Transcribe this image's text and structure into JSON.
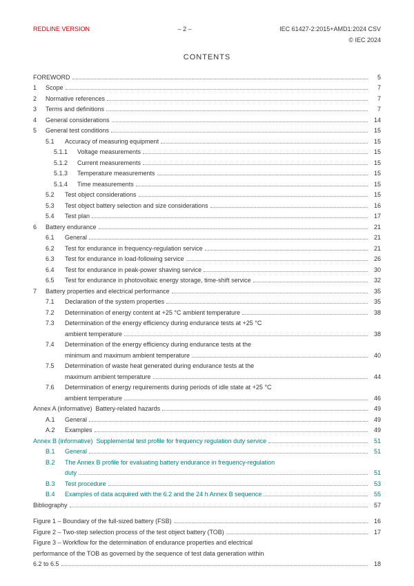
{
  "header": {
    "left": "REDLINE VERSION",
    "center": "– 2 –",
    "right_top": "IEC 61427-2:2015+AMD1:2024 CSV",
    "right_sub": "© IEC 2024"
  },
  "contents_title": "CONTENTS",
  "toc": [
    {
      "level": "foreword",
      "num": "",
      "title": "FOREWORD",
      "page": "5"
    },
    {
      "level": 1,
      "num": "1",
      "title": "Scope",
      "page": "7"
    },
    {
      "level": 1,
      "num": "2",
      "title": "Normative references",
      "page": "7"
    },
    {
      "level": 1,
      "num": "3",
      "title": "Terms and definitions",
      "page": "7"
    },
    {
      "level": 1,
      "num": "4",
      "title": "General considerations",
      "page": "14"
    },
    {
      "level": 1,
      "num": "5",
      "title": "General test conditions",
      "page": "15"
    },
    {
      "level": 2,
      "num": "5.1",
      "title": "Accuracy of measuring equipment",
      "page": "15"
    },
    {
      "level": 3,
      "num": "5.1.1",
      "title": "Voltage measurements",
      "page": "15"
    },
    {
      "level": 3,
      "num": "5.1.2",
      "title": "Current measurements",
      "page": "15"
    },
    {
      "level": 3,
      "num": "5.1.3",
      "title": "Temperature measurements",
      "page": "15"
    },
    {
      "level": 3,
      "num": "5.1.4",
      "title": "Time measurements",
      "page": "15"
    },
    {
      "level": 2,
      "num": "5.2",
      "title": "Test object considerations",
      "page": "15"
    },
    {
      "level": 2,
      "num": "5.3",
      "title": "Test object battery selection and size considerations",
      "page": "16"
    },
    {
      "level": 2,
      "num": "5.4",
      "title": "Test plan",
      "page": "17"
    },
    {
      "level": 1,
      "num": "6",
      "title": "Battery endurance",
      "page": "21"
    },
    {
      "level": 2,
      "num": "6.1",
      "title": "General",
      "page": "21"
    },
    {
      "level": 2,
      "num": "6.2",
      "title": "Test for endurance in frequency-regulation service",
      "page": "21"
    },
    {
      "level": 2,
      "num": "6.3",
      "title": "Test for endurance in load-following service",
      "page": "26"
    },
    {
      "level": 2,
      "num": "6.4",
      "title": "Test for endurance in peak-power shaving service",
      "page": "30"
    },
    {
      "level": 2,
      "num": "6.5",
      "title": "Test for endurance in photovoltaic energy storage, time-shift service",
      "page": "32"
    },
    {
      "level": 1,
      "num": "7",
      "title": "Battery properties and electrical performance",
      "page": "35"
    },
    {
      "level": 2,
      "num": "7.1",
      "title": "Declaration of the system properties",
      "page": "35"
    },
    {
      "level": 2,
      "num": "7.2",
      "title": "Determination of energy content at +25 °C ambient temperature",
      "page": "38"
    },
    {
      "level": 2,
      "num": "7.3",
      "title": "Determination of the energy efficiency during endurance tests at +25 °C",
      "cont": "ambient temperature",
      "page": "38"
    },
    {
      "level": 2,
      "num": "7.4",
      "title": "Determination of the energy efficiency during endurance tests at the",
      "cont": "minimum and maximum ambient temperature",
      "page": "40"
    },
    {
      "level": 2,
      "num": "7.5",
      "title": "Determination of waste heat generated during endurance tests at the",
      "cont": "maximum ambient temperature",
      "page": "44"
    },
    {
      "level": 2,
      "num": "7.6",
      "title": "Determination of energy requirements during periods of idle state at +25 °C",
      "cont": "ambient temperature",
      "page": "46"
    },
    {
      "level": "annex",
      "num": "",
      "title": "Annex A (informative)  Battery-related hazards",
      "page": "49"
    },
    {
      "level": 2,
      "num": "A.1",
      "title": "General",
      "page": "49"
    },
    {
      "level": 2,
      "num": "A.2",
      "title": "Examples",
      "page": "49"
    },
    {
      "level": "annex-g",
      "num": "",
      "title": "Annex B (informative)  Supplemental test profile for frequency regulation duty service",
      "page": "51"
    },
    {
      "level": "2g",
      "num": "B.1",
      "title": "General",
      "page": "51"
    },
    {
      "level": "2g",
      "num": "B.2",
      "title": "The Annex B profile for evaluating battery endurance in frequency-regulation",
      "cont": "duty",
      "page": "51"
    },
    {
      "level": "2g",
      "num": "B.3",
      "title": "Test procedure",
      "page": "53"
    },
    {
      "level": "2g",
      "num": "B.4",
      "title": "Examples of data acquired with the 6.2 and the 24 h Annex B sequence",
      "page": "55"
    },
    {
      "level": "biblio",
      "num": "",
      "title": "Bibliography",
      "page": "57"
    }
  ],
  "figures": [
    {
      "title": "Figure 1 – Boundary of the full-sized battery (FSB)",
      "page": "16"
    },
    {
      "title": "Figure 2 – Two-step selection process of the test object battery (TOB)",
      "page": "17"
    },
    {
      "title": "Figure 3 – Workflow for the determination of endurance properties and electrical",
      "cont": "performance of the TOB as governed by the sequence of  test data generation within",
      "cont2": "6.2 to 6.5",
      "page": "18"
    }
  ],
  "colors": {
    "redline": "#c00000",
    "green": "#008080",
    "text": "#333333"
  }
}
